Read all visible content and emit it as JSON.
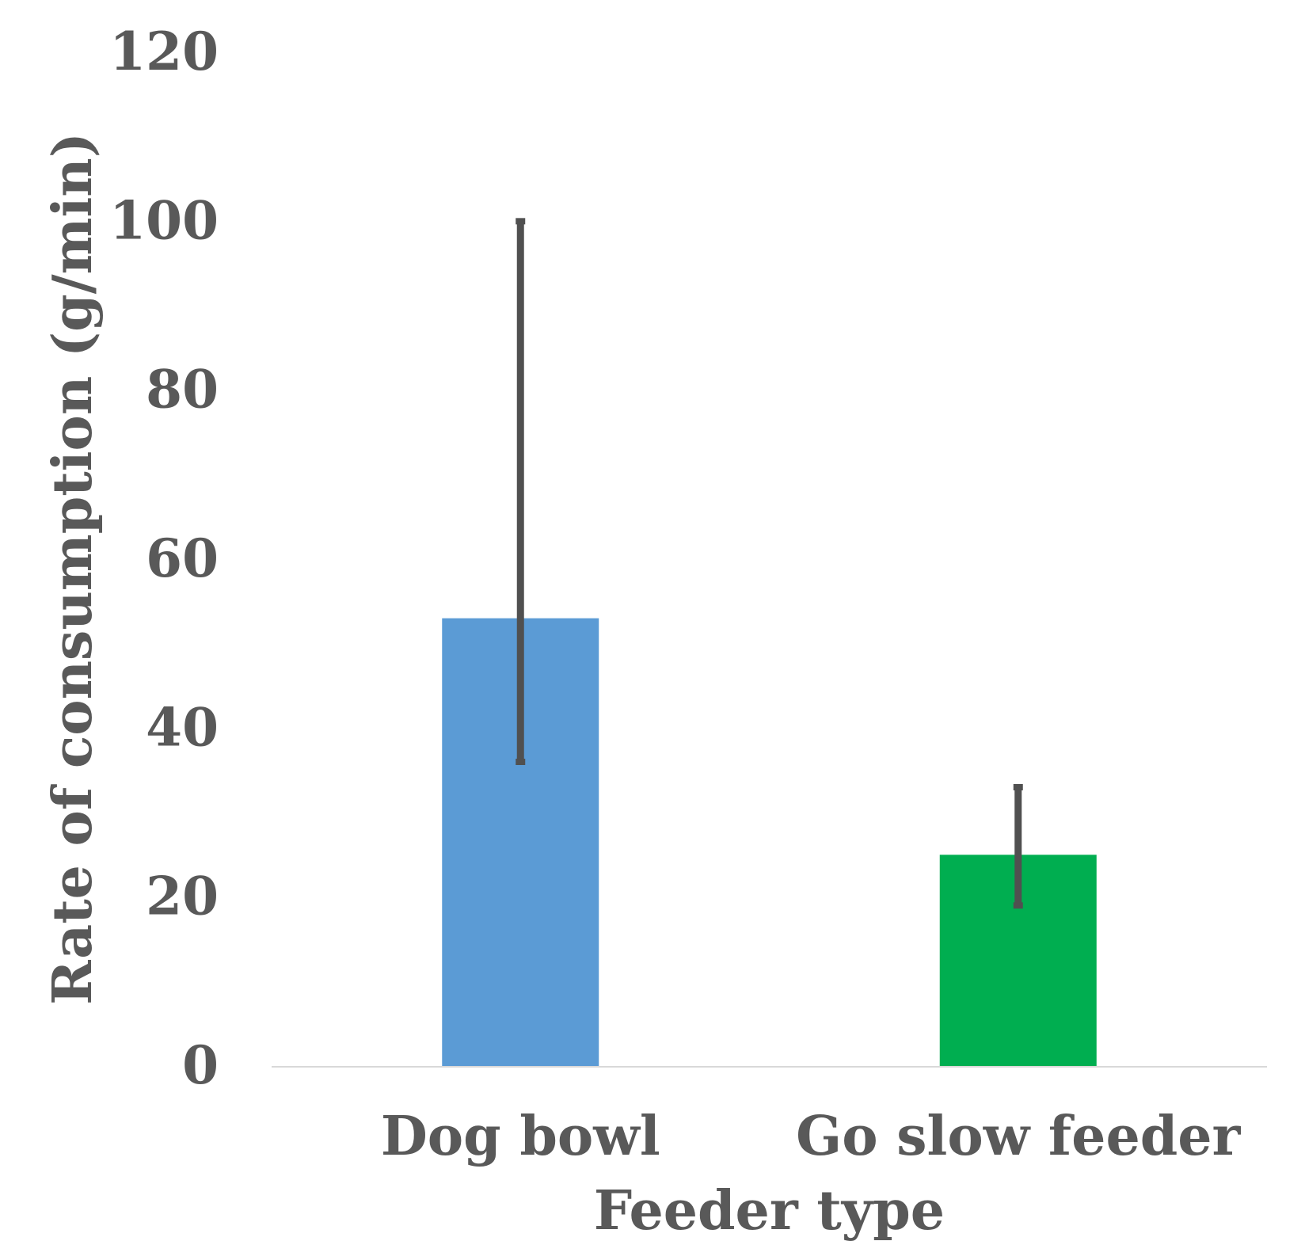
{
  "chart_data": {
    "type": "bar",
    "title": "",
    "xlabel": "Feeder type",
    "ylabel": "Rate of consumption (g/min)",
    "ylim": [
      0,
      120
    ],
    "yticks": [
      0,
      20,
      40,
      60,
      80,
      100,
      120
    ],
    "ytick_labels": [
      "0",
      "20",
      "40",
      "60",
      "80",
      "100",
      "120"
    ],
    "categories": [
      "Dog bowl",
      "Go slow feeder"
    ],
    "values": [
      53,
      25
    ],
    "error_bars": [
      {
        "low": 36,
        "high": 100
      },
      {
        "low": 19,
        "high": 33
      }
    ],
    "colors": [
      "#5B9BD5",
      "#00AE50"
    ],
    "error_bar_color": "#505050",
    "axis_color": "#D9D9D9",
    "grid": false,
    "legend": "none"
  }
}
